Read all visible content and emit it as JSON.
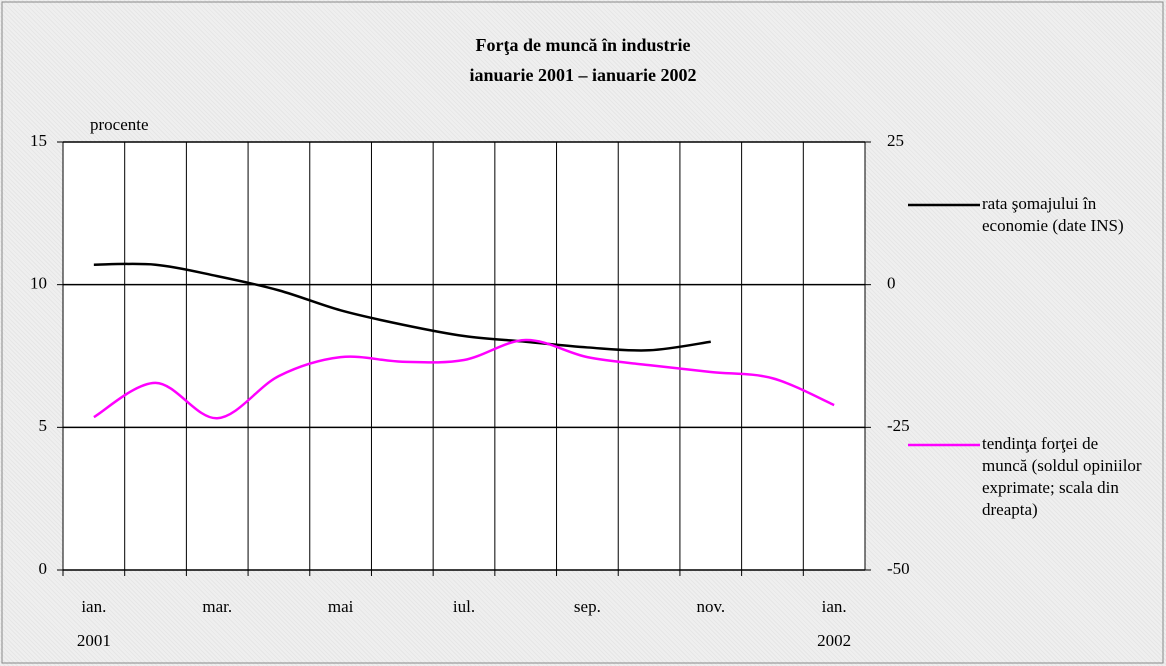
{
  "chart_data": {
    "type": "line",
    "title": "Forţa de muncă în industrie",
    "subtitle": "ianuarie 2001 – ianuarie 2002",
    "y_label": "procente",
    "categories": [
      "ian.\n2001",
      null,
      "mar.",
      null,
      "mai",
      null,
      "iul.",
      null,
      "sep.",
      null,
      "nov.",
      null,
      "ian.\n2002"
    ],
    "series": [
      {
        "name": "rata şomajului în economie (date INS)",
        "color": "#000000",
        "values": [
          10.7,
          10.7,
          10.3,
          9.8,
          9.1,
          8.6,
          8.2,
          8.0,
          7.8,
          7.7,
          8.0,
          null,
          null
        ]
      },
      {
        "name": "tendinţa forţei de muncă (soldul opiniilor exprimate; scala din dreapta)",
        "color": "#ff00ff",
        "axis": "y2",
        "values": [
          -23.2,
          -17.2,
          -23.4,
          -16.0,
          -12.7,
          -13.5,
          -13.2,
          -9.7,
          -12.7,
          -14.1,
          -15.3,
          -16.4,
          -21.1
        ]
      }
    ],
    "ylim": [
      0,
      15
    ],
    "yticks": [
      0,
      5,
      10,
      15
    ],
    "y2lim": [
      -50,
      25
    ],
    "y2ticks": [
      -50,
      -25,
      0,
      25
    ],
    "grid": true,
    "legend": "right"
  }
}
